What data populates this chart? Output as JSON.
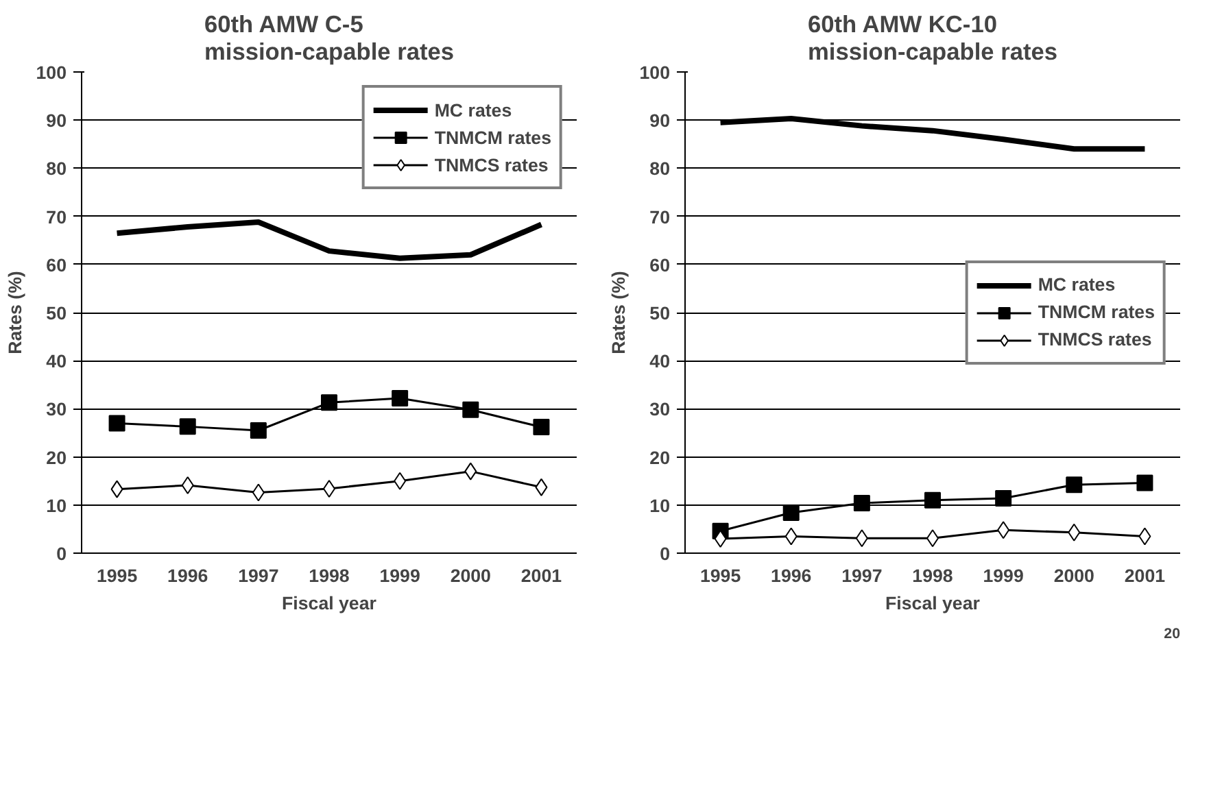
{
  "chart_data": [
    {
      "type": "line",
      "title": "60th AMW C-5\nmission-capable rates",
      "xlabel": "Fiscal year",
      "ylabel": "Rates (%)",
      "categories": [
        "1995",
        "1996",
        "1997",
        "1998",
        "1999",
        "2000",
        "2001"
      ],
      "ylim": [
        0,
        100
      ],
      "yticks": [
        0,
        10,
        20,
        30,
        40,
        50,
        60,
        70,
        80,
        90,
        100
      ],
      "grid": "y",
      "legend": "top right",
      "series": [
        {
          "name": "MC rates",
          "color": "#000000",
          "marker": "none",
          "values": [
            66.5,
            67.8,
            68.8,
            62.8,
            61.3,
            62.0,
            68.3
          ]
        },
        {
          "name": "TNMCM rates",
          "color": "#000000",
          "marker": "square",
          "values": [
            27.0,
            26.3,
            25.5,
            31.3,
            32.2,
            29.8,
            26.2
          ]
        },
        {
          "name": "TNMCS rates",
          "color": "#000000",
          "marker": "diamond",
          "values": [
            13.3,
            14.1,
            12.6,
            13.4,
            15.0,
            17.0,
            13.7
          ]
        }
      ]
    },
    {
      "type": "line",
      "title": "60th AMW KC-10\nmission-capable rates",
      "xlabel": "Fiscal year",
      "ylabel": "Rates (%)",
      "categories": [
        "1995",
        "1996",
        "1997",
        "1998",
        "1999",
        "2000",
        "2001"
      ],
      "ylim": [
        0,
        100
      ],
      "yticks": [
        0,
        10,
        20,
        30,
        40,
        50,
        60,
        70,
        80,
        90,
        100
      ],
      "grid": "y",
      "legend": "right",
      "annotations": [
        "20"
      ],
      "series": [
        {
          "name": "MC rates",
          "color": "#000000",
          "marker": "none",
          "values": [
            89.5,
            90.3,
            88.8,
            87.8,
            86.0,
            84.0,
            84.0
          ]
        },
        {
          "name": "TNMCM rates",
          "color": "#000000",
          "marker": "square",
          "values": [
            4.6,
            8.4,
            10.4,
            11.0,
            11.4,
            14.2,
            14.6
          ]
        },
        {
          "name": "TNMCS rates",
          "color": "#000000",
          "marker": "diamond",
          "values": [
            3.0,
            3.5,
            3.1,
            3.1,
            4.8,
            4.3,
            3.5
          ]
        }
      ]
    }
  ]
}
